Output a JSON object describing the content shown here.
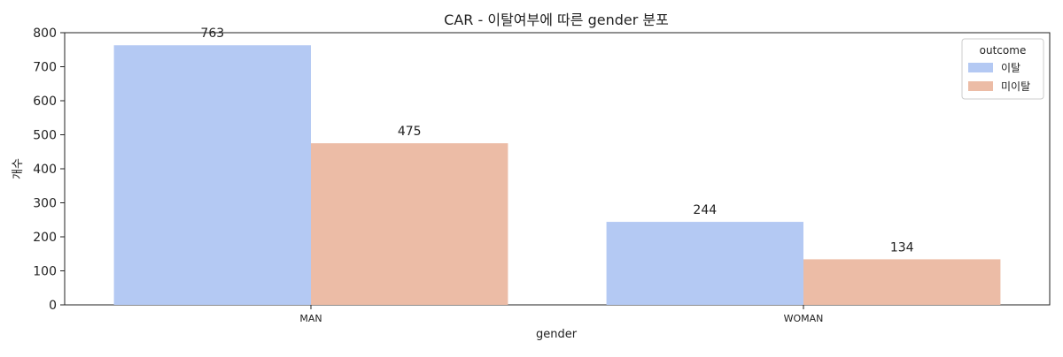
{
  "chart_data": {
    "type": "bar",
    "title": "CAR - 이탈여부에 따른 gender 분포",
    "xlabel": "gender",
    "ylabel": "개수",
    "categories": [
      "MAN",
      "WOMAN"
    ],
    "series": [
      {
        "name": "이탈",
        "values": [
          763,
          244
        ],
        "color": "#b4c9f3"
      },
      {
        "name": "미이탈",
        "values": [
          475,
          134
        ],
        "color": "#ecbca6"
      }
    ],
    "ylim": [
      0,
      800
    ],
    "yticks": [
      0,
      100,
      200,
      300,
      400,
      500,
      600,
      700,
      800
    ],
    "legend": {
      "title": "outcome",
      "placement": "top-right"
    },
    "grid": false
  }
}
